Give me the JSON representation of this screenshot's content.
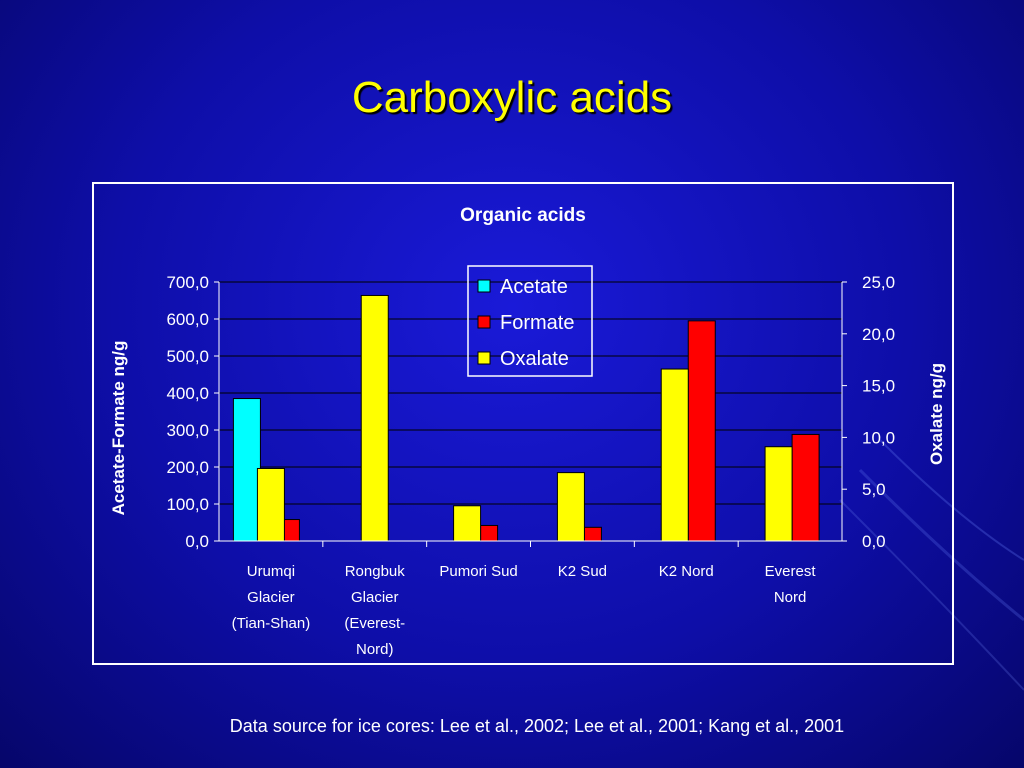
{
  "slide": {
    "title": "Carboxylic acids",
    "source_note": "Data source for ice cores: Lee et al., 2002; Lee et al., 2001; Kang et al., 2001"
  },
  "colors": {
    "background": "#0e0ea8",
    "title": "#ffff00",
    "acetate": "#00ffff",
    "formate": "#ff0000",
    "oxalate": "#ffff00",
    "text": "#ffffff"
  },
  "chart_data": {
    "type": "bar",
    "title": "Organic acids",
    "ylabel": "Acetate-Formate ng/g",
    "y2label": "Oxalate ng/g",
    "ylim": [
      0,
      700
    ],
    "y2lim": [
      0,
      25
    ],
    "yticks": [
      "0,0",
      "100,0",
      "200,0",
      "300,0",
      "400,0",
      "500,0",
      "600,0",
      "700,0"
    ],
    "y2ticks": [
      "0,0",
      "5,0",
      "10,0",
      "15,0",
      "20,0",
      "25,0"
    ],
    "categories": [
      [
        "Urumqi",
        "Glacier",
        "(Tian-Shan)"
      ],
      [
        "Rongbuk",
        "Glacier",
        "(Everest-",
        "Nord)"
      ],
      [
        "Pumori Sud"
      ],
      [
        "K2 Sud"
      ],
      [
        "K2 Nord"
      ],
      [
        "Everest",
        "Nord"
      ]
    ],
    "series": [
      {
        "name": "Acetate",
        "axis": "left",
        "color": "#00ffff",
        "values": [
          385,
          null,
          null,
          null,
          null,
          null
        ]
      },
      {
        "name": "Oxalate",
        "axis": "right",
        "color": "#ffff00",
        "values": [
          7.0,
          23.7,
          3.4,
          6.6,
          16.6,
          9.1
        ]
      },
      {
        "name": "Formate",
        "axis": "left",
        "color": "#ff0000",
        "values": [
          58,
          null,
          42,
          37,
          595,
          288
        ]
      }
    ],
    "legend": {
      "position": "top-center",
      "entries": [
        "Acetate",
        "Formate",
        "Oxalate"
      ]
    },
    "grid": true
  }
}
